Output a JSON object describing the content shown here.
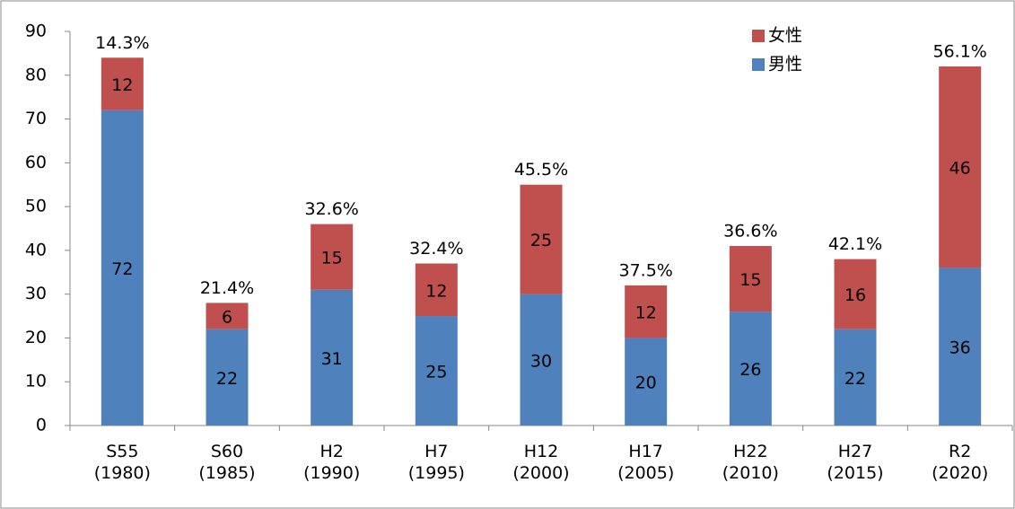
{
  "chart_data": {
    "type": "stacked_bar",
    "categories": [
      "S55\n(1980)",
      "S60\n(1985)",
      "H2\n(1990)",
      "H7\n(1995)",
      "H12\n(2000)",
      "H17\n(2005)",
      "H22\n(2010)",
      "H27\n(2015)",
      "R2\n(2020)"
    ],
    "series": [
      {
        "name": "男性",
        "color": "#4f81bd",
        "values": [
          72,
          22,
          31,
          25,
          30,
          20,
          26,
          22,
          36
        ]
      },
      {
        "name": "女性",
        "color": "#c0504d",
        "values": [
          12,
          6,
          15,
          12,
          25,
          12,
          15,
          16,
          46
        ]
      }
    ],
    "annotations": [
      "14.3%",
      "21.4%",
      "32.6%",
      "32.4%",
      "45.5%",
      "37.5%",
      "36.6%",
      "42.1%",
      "56.1%"
    ],
    "ylim": [
      0,
      90
    ],
    "yticks": [
      0,
      10,
      20,
      30,
      40,
      50,
      60,
      70,
      80,
      90
    ],
    "grid": false,
    "legend": "top-right"
  }
}
